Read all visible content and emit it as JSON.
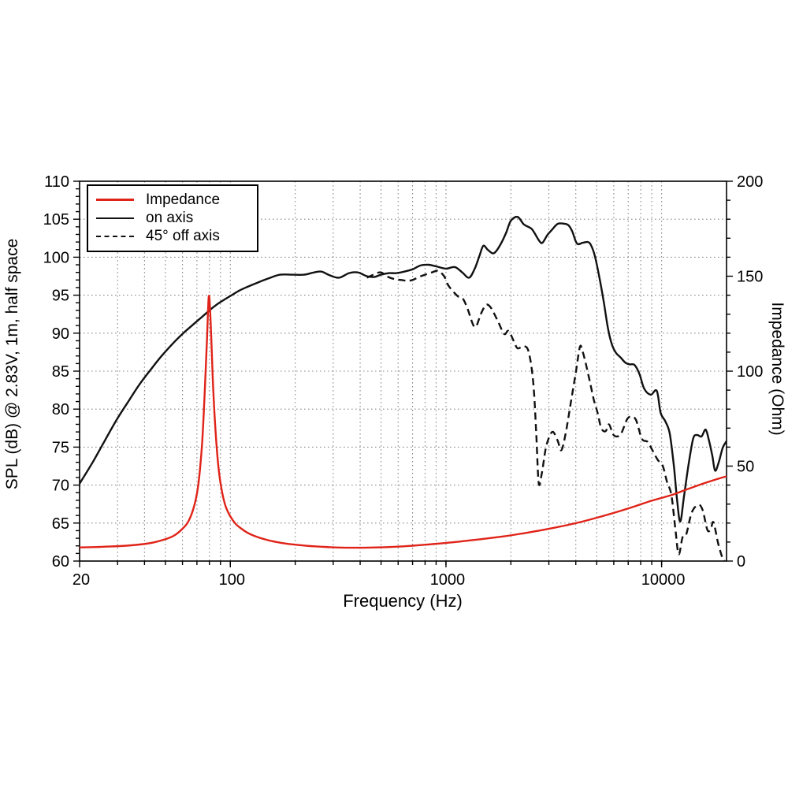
{
  "chart_data": {
    "type": "line",
    "title": "",
    "xlabel": "Frequency (Hz)",
    "ylabel_left": "SPL (dB) @ 2.83V, 1m, half space",
    "ylabel_right": "Impedance (Ohm)",
    "x_axis": {
      "scale": "log",
      "min": 20,
      "max": 20000,
      "ticks": [
        20,
        100,
        1000,
        10000
      ]
    },
    "y_axis_left": {
      "min": 60,
      "max": 110,
      "ticks": [
        60,
        65,
        70,
        75,
        80,
        85,
        90,
        95,
        100,
        105,
        110
      ],
      "minor_step": 1,
      "unit": "dB"
    },
    "y_axis_right": {
      "min": 0,
      "max": 200,
      "ticks": [
        0,
        50,
        100,
        150,
        200
      ],
      "minor_step": 10,
      "unit": "Ohm"
    },
    "grid": "dotted gray; horizontal every 5 dB, vertical at log minor decades",
    "legend_position": "top-left",
    "legend": [
      {
        "label": "Impedance",
        "color": "#e02318",
        "style": "solid"
      },
      {
        "label": "on axis",
        "color": "#111111",
        "style": "solid"
      },
      {
        "label": "45° off axis",
        "color": "#111111",
        "style": "dashed"
      }
    ],
    "series": [
      {
        "id": "on-axis",
        "name": "on axis",
        "axis": "left",
        "unit": "dB",
        "color": "#111111",
        "style": "solid",
        "points": [
          [
            20,
            70.2
          ],
          [
            23,
            73.0
          ],
          [
            26,
            75.7
          ],
          [
            30,
            78.8
          ],
          [
            34,
            81.2
          ],
          [
            38,
            83.3
          ],
          [
            43,
            85.3
          ],
          [
            48,
            87.0
          ],
          [
            54,
            88.6
          ],
          [
            60,
            89.9
          ],
          [
            67,
            91.1
          ],
          [
            75,
            92.3
          ],
          [
            80,
            93.0
          ],
          [
            85,
            93.6
          ],
          [
            90,
            94.1
          ],
          [
            100,
            94.9
          ],
          [
            110,
            95.6
          ],
          [
            120,
            96.1
          ],
          [
            135,
            96.7
          ],
          [
            150,
            97.2
          ],
          [
            170,
            97.7
          ],
          [
            195,
            97.7
          ],
          [
            220,
            97.7
          ],
          [
            245,
            98.0
          ],
          [
            265,
            98.1
          ],
          [
            290,
            97.6
          ],
          [
            320,
            97.3
          ],
          [
            355,
            97.9
          ],
          [
            390,
            98.0
          ],
          [
            430,
            97.5
          ],
          [
            465,
            97.4
          ],
          [
            500,
            97.7
          ],
          [
            545,
            97.9
          ],
          [
            590,
            97.9
          ],
          [
            640,
            98.1
          ],
          [
            700,
            98.4
          ],
          [
            760,
            98.9
          ],
          [
            830,
            99.0
          ],
          [
            900,
            98.8
          ],
          [
            1000,
            98.5
          ],
          [
            1100,
            98.7
          ],
          [
            1190,
            98.0
          ],
          [
            1280,
            97.3
          ],
          [
            1360,
            98.5
          ],
          [
            1430,
            100.2
          ],
          [
            1490,
            101.5
          ],
          [
            1560,
            101.0
          ],
          [
            1650,
            100.5
          ],
          [
            1720,
            100.9
          ],
          [
            1800,
            101.8
          ],
          [
            1900,
            103.2
          ],
          [
            2000,
            104.8
          ],
          [
            2150,
            105.3
          ],
          [
            2300,
            104.3
          ],
          [
            2500,
            103.7
          ],
          [
            2700,
            102.2
          ],
          [
            2800,
            101.9
          ],
          [
            2950,
            102.9
          ],
          [
            3100,
            103.6
          ],
          [
            3300,
            104.4
          ],
          [
            3550,
            104.4
          ],
          [
            3700,
            104.2
          ],
          [
            3850,
            103.4
          ],
          [
            4050,
            101.8
          ],
          [
            4300,
            101.9
          ],
          [
            4550,
            102.0
          ],
          [
            4700,
            101.6
          ],
          [
            4900,
            100.2
          ],
          [
            5150,
            97.3
          ],
          [
            5400,
            94.0
          ],
          [
            5650,
            90.5
          ],
          [
            5900,
            88.4
          ],
          [
            6150,
            87.4
          ],
          [
            6450,
            86.8
          ],
          [
            6800,
            86.1
          ],
          [
            7100,
            85.9
          ],
          [
            7500,
            85.8
          ],
          [
            7900,
            84.6
          ],
          [
            8300,
            82.7
          ],
          [
            8900,
            81.9
          ],
          [
            9500,
            82.4
          ],
          [
            9900,
            79.5
          ],
          [
            10400,
            78.4
          ],
          [
            10900,
            76.8
          ],
          [
            11400,
            72.5
          ],
          [
            11800,
            68.0
          ],
          [
            12200,
            65.2
          ],
          [
            12700,
            68.5
          ],
          [
            13300,
            72.5
          ],
          [
            14000,
            76.1
          ],
          [
            14600,
            76.6
          ],
          [
            15300,
            76.4
          ],
          [
            16000,
            77.3
          ],
          [
            16600,
            75.8
          ],
          [
            17200,
            73.8
          ],
          [
            17700,
            71.9
          ],
          [
            18400,
            73.0
          ],
          [
            19200,
            74.9
          ],
          [
            20000,
            75.8
          ]
        ]
      },
      {
        "id": "off-axis-45",
        "name": "45° off axis",
        "axis": "left",
        "unit": "dB",
        "color": "#111111",
        "style": "dashed",
        "points": [
          [
            430,
            97.3
          ],
          [
            470,
            97.8
          ],
          [
            500,
            98.0
          ],
          [
            540,
            97.4
          ],
          [
            580,
            97.1
          ],
          [
            620,
            97.0
          ],
          [
            660,
            96.9
          ],
          [
            700,
            97.0
          ],
          [
            750,
            97.4
          ],
          [
            800,
            97.7
          ],
          [
            860,
            98.0
          ],
          [
            920,
            98.2
          ],
          [
            980,
            97.5
          ],
          [
            1030,
            96.2
          ],
          [
            1130,
            94.9
          ],
          [
            1200,
            94.5
          ],
          [
            1260,
            93.2
          ],
          [
            1360,
            90.8
          ],
          [
            1450,
            92.5
          ],
          [
            1530,
            93.7
          ],
          [
            1610,
            93.4
          ],
          [
            1740,
            91.6
          ],
          [
            1860,
            89.9
          ],
          [
            1950,
            90.3
          ],
          [
            2060,
            89.0
          ],
          [
            2150,
            88.0
          ],
          [
            2300,
            88.3
          ],
          [
            2420,
            87.5
          ],
          [
            2540,
            83.5
          ],
          [
            2620,
            77.0
          ],
          [
            2690,
            70.3
          ],
          [
            2780,
            71.5
          ],
          [
            2900,
            74.8
          ],
          [
            3020,
            76.4
          ],
          [
            3140,
            77.0
          ],
          [
            3300,
            75.8
          ],
          [
            3430,
            74.6
          ],
          [
            3600,
            77.0
          ],
          [
            3800,
            81.0
          ],
          [
            4000,
            84.8
          ],
          [
            4180,
            88.2
          ],
          [
            4300,
            87.6
          ],
          [
            4450,
            86.0
          ],
          [
            4650,
            83.6
          ],
          [
            4850,
            81.2
          ],
          [
            5050,
            79.5
          ],
          [
            5250,
            77.5
          ],
          [
            5500,
            77.1
          ],
          [
            5700,
            78.0
          ],
          [
            5950,
            76.7
          ],
          [
            6200,
            76.4
          ],
          [
            6500,
            76.8
          ],
          [
            6900,
            78.6
          ],
          [
            7200,
            79.0
          ],
          [
            7600,
            78.6
          ],
          [
            8100,
            76.1
          ],
          [
            8600,
            75.7
          ],
          [
            9100,
            74.5
          ],
          [
            9600,
            73.3
          ],
          [
            10100,
            72.6
          ],
          [
            10600,
            70.4
          ],
          [
            11100,
            68.7
          ],
          [
            11600,
            64.0
          ],
          [
            12000,
            60.9
          ],
          [
            12500,
            63.1
          ],
          [
            13000,
            63.5
          ],
          [
            13800,
            66.4
          ],
          [
            14800,
            67.4
          ],
          [
            15500,
            66.7
          ],
          [
            16300,
            64.1
          ],
          [
            16900,
            64.2
          ],
          [
            17400,
            65.1
          ],
          [
            18300,
            62.3
          ],
          [
            19200,
            60.3
          ],
          [
            19600,
            60.0
          ]
        ]
      },
      {
        "id": "impedance",
        "name": "Impedance",
        "axis": "right",
        "unit": "Ohm",
        "color": "#e02318",
        "style": "solid",
        "points": [
          [
            20,
            7.2
          ],
          [
            24,
            7.4
          ],
          [
            28,
            7.7
          ],
          [
            33,
            8.1
          ],
          [
            38,
            8.7
          ],
          [
            44,
            9.8
          ],
          [
            50,
            11.5
          ],
          [
            55,
            13.5
          ],
          [
            60,
            17
          ],
          [
            64,
            21
          ],
          [
            68,
            29
          ],
          [
            71,
            40
          ],
          [
            74,
            62
          ],
          [
            76,
            88
          ],
          [
            78,
            118
          ],
          [
            79.5,
            139.5
          ],
          [
            81,
            127
          ],
          [
            83,
            95
          ],
          [
            85,
            72
          ],
          [
            88,
            50
          ],
          [
            91,
            38
          ],
          [
            95,
            29
          ],
          [
            100,
            23.5
          ],
          [
            106,
            19.5
          ],
          [
            112,
            17.2
          ],
          [
            120,
            14.9
          ],
          [
            130,
            13.1
          ],
          [
            142,
            11.7
          ],
          [
            156,
            10.5
          ],
          [
            172,
            9.6
          ],
          [
            190,
            8.9
          ],
          [
            210,
            8.4
          ],
          [
            235,
            7.9
          ],
          [
            260,
            7.6
          ],
          [
            290,
            7.3
          ],
          [
            330,
            7.1
          ],
          [
            380,
            7.0
          ],
          [
            440,
            7.1
          ],
          [
            520,
            7.3
          ],
          [
            600,
            7.6
          ],
          [
            700,
            8.1
          ],
          [
            800,
            8.6
          ],
          [
            950,
            9.3
          ],
          [
            1100,
            10.0
          ],
          [
            1300,
            10.9
          ],
          [
            1550,
            11.9
          ],
          [
            1850,
            13.0
          ],
          [
            2200,
            14.3
          ],
          [
            2600,
            15.7
          ],
          [
            3100,
            17.3
          ],
          [
            3700,
            19.1
          ],
          [
            4400,
            21.1
          ],
          [
            5300,
            23.6
          ],
          [
            6300,
            26.1
          ],
          [
            7500,
            28.8
          ],
          [
            9000,
            31.8
          ],
          [
            11000,
            34.6
          ],
          [
            13000,
            37.6
          ],
          [
            15500,
            40.7
          ],
          [
            18000,
            43.1
          ],
          [
            20000,
            44.6
          ]
        ]
      }
    ]
  }
}
